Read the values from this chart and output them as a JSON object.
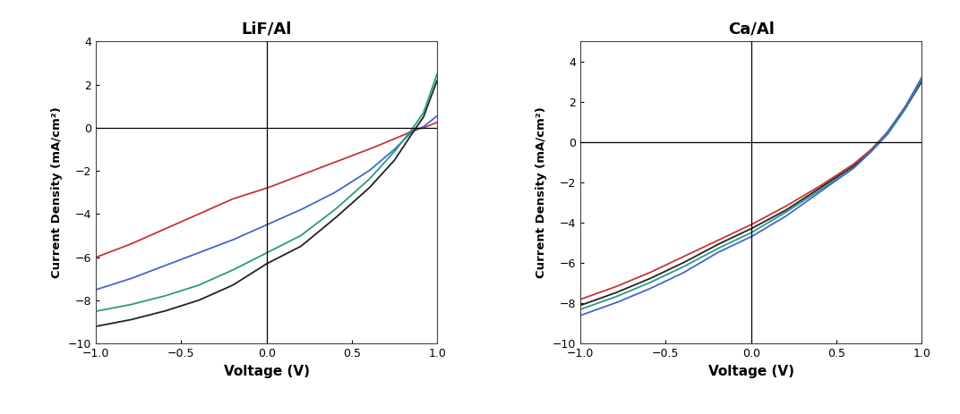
{
  "title_left": "LiF/Al",
  "title_right": "Ca/Al",
  "xlabel": "Voltage (V)",
  "ylabel": "Current Density (mA/cm²)",
  "xlim": [
    -1.0,
    1.0
  ],
  "ylim_left": [
    -10,
    4
  ],
  "ylim_right": [
    -10,
    5
  ],
  "xticks": [
    -1.0,
    -0.5,
    0.0,
    0.5,
    1.0
  ],
  "yticks_left": [
    -10,
    -8,
    -6,
    -4,
    -2,
    0,
    2,
    4
  ],
  "yticks_right": [
    -10,
    -8,
    -6,
    -4,
    -2,
    0,
    2,
    4
  ],
  "background": "#ffffff",
  "lif_al": {
    "red": {
      "V": [
        -1.0,
        -0.8,
        -0.6,
        -0.4,
        -0.2,
        0.0,
        0.2,
        0.4,
        0.6,
        0.8,
        0.88,
        0.92,
        1.0
      ],
      "J": [
        -6.0,
        -5.4,
        -4.7,
        -4.0,
        -3.3,
        -2.8,
        -2.2,
        -1.6,
        -1.0,
        -0.35,
        -0.05,
        0.0,
        0.25
      ],
      "color": "#cc3333"
    },
    "blue": {
      "V": [
        -1.0,
        -0.8,
        -0.6,
        -0.4,
        -0.2,
        0.0,
        0.2,
        0.4,
        0.6,
        0.75,
        0.85,
        0.92,
        1.0
      ],
      "J": [
        -7.5,
        -7.0,
        -6.4,
        -5.8,
        -5.2,
        -4.5,
        -3.8,
        -3.0,
        -2.0,
        -1.0,
        -0.2,
        0.05,
        0.55
      ],
      "color": "#4466cc"
    },
    "black": {
      "V": [
        -1.0,
        -0.8,
        -0.6,
        -0.4,
        -0.2,
        0.0,
        0.2,
        0.4,
        0.6,
        0.75,
        0.85,
        0.92,
        1.0
      ],
      "J": [
        -9.2,
        -8.9,
        -8.5,
        -8.0,
        -7.3,
        -6.3,
        -5.5,
        -4.2,
        -2.8,
        -1.5,
        -0.3,
        0.5,
        2.2
      ],
      "color": "#222222"
    },
    "teal": {
      "V": [
        -1.0,
        -0.8,
        -0.6,
        -0.4,
        -0.2,
        0.0,
        0.2,
        0.4,
        0.6,
        0.75,
        0.85,
        0.92,
        1.0
      ],
      "J": [
        -8.5,
        -8.2,
        -7.8,
        -7.3,
        -6.6,
        -5.8,
        -5.0,
        -3.8,
        -2.4,
        -1.1,
        -0.1,
        0.7,
        2.5
      ],
      "color": "#2a9a80"
    }
  },
  "ca_al": {
    "red": {
      "V": [
        -1.0,
        -0.8,
        -0.6,
        -0.4,
        -0.2,
        0.0,
        0.2,
        0.4,
        0.6,
        0.7,
        0.8,
        0.9,
        1.0
      ],
      "J": [
        -7.8,
        -7.2,
        -6.5,
        -5.7,
        -4.9,
        -4.1,
        -3.2,
        -2.2,
        -1.1,
        -0.4,
        0.5,
        1.7,
        3.0
      ],
      "color": "#cc3333"
    },
    "black": {
      "V": [
        -1.0,
        -0.8,
        -0.6,
        -0.4,
        -0.2,
        0.0,
        0.2,
        0.4,
        0.6,
        0.7,
        0.8,
        0.9,
        1.0
      ],
      "J": [
        -8.1,
        -7.5,
        -6.8,
        -6.0,
        -5.1,
        -4.3,
        -3.4,
        -2.3,
        -1.2,
        -0.5,
        0.4,
        1.6,
        3.0
      ],
      "color": "#222222"
    },
    "teal": {
      "V": [
        -1.0,
        -0.8,
        -0.6,
        -0.4,
        -0.2,
        0.0,
        0.2,
        0.4,
        0.6,
        0.7,
        0.8,
        0.9,
        1.0
      ],
      "J": [
        -8.3,
        -7.7,
        -7.0,
        -6.2,
        -5.3,
        -4.5,
        -3.5,
        -2.4,
        -1.3,
        -0.5,
        0.4,
        1.6,
        3.1
      ],
      "color": "#2a9a80"
    },
    "blue": {
      "V": [
        -1.0,
        -0.8,
        -0.6,
        -0.4,
        -0.2,
        0.0,
        0.2,
        0.4,
        0.6,
        0.7,
        0.8,
        0.9,
        1.0
      ],
      "J": [
        -8.6,
        -8.0,
        -7.3,
        -6.5,
        -5.5,
        -4.7,
        -3.7,
        -2.5,
        -1.3,
        -0.5,
        0.5,
        1.7,
        3.2
      ],
      "color": "#4466cc"
    }
  }
}
